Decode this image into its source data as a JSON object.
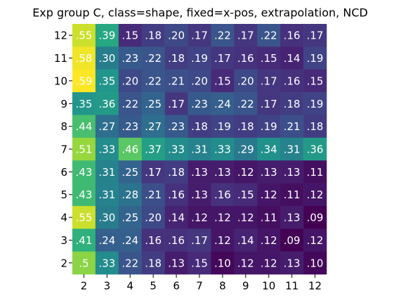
{
  "chart_data": {
    "type": "heatmap",
    "title": "Exp group C, class=shape, fixed=x-pos, extrapolation, NCD",
    "x": [
      2,
      3,
      4,
      5,
      6,
      7,
      8,
      9,
      10,
      11,
      12
    ],
    "y": [
      12,
      11,
      10,
      9,
      8,
      7,
      6,
      5,
      4,
      3,
      2
    ],
    "colormap": "viridis",
    "values": [
      [
        0.55,
        0.39,
        0.15,
        0.18,
        0.2,
        0.17,
        0.22,
        0.17,
        0.22,
        0.16,
        0.17
      ],
      [
        0.58,
        0.3,
        0.23,
        0.22,
        0.18,
        0.19,
        0.17,
        0.16,
        0.15,
        0.14,
        0.19
      ],
      [
        0.59,
        0.35,
        0.2,
        0.22,
        0.21,
        0.2,
        0.15,
        0.2,
        0.17,
        0.16,
        0.15
      ],
      [
        0.35,
        0.36,
        0.22,
        0.25,
        0.17,
        0.23,
        0.24,
        0.22,
        0.17,
        0.18,
        0.19
      ],
      [
        0.44,
        0.27,
        0.23,
        0.27,
        0.23,
        0.18,
        0.19,
        0.18,
        0.19,
        0.21,
        0.18
      ],
      [
        0.51,
        0.33,
        0.46,
        0.37,
        0.33,
        0.31,
        0.33,
        0.29,
        0.34,
        0.31,
        0.36
      ],
      [
        0.43,
        0.31,
        0.25,
        0.17,
        0.18,
        0.13,
        0.13,
        0.12,
        0.13,
        0.13,
        0.11
      ],
      [
        0.43,
        0.31,
        0.28,
        0.21,
        0.16,
        0.13,
        0.16,
        0.15,
        0.12,
        0.11,
        0.12
      ],
      [
        0.55,
        0.3,
        0.25,
        0.2,
        0.14,
        0.12,
        0.12,
        0.12,
        0.11,
        0.13,
        0.09
      ],
      [
        0.41,
        0.24,
        0.24,
        0.16,
        0.16,
        0.17,
        0.12,
        0.14,
        0.12,
        0.09,
        0.12
      ],
      [
        0.5,
        0.33,
        0.22,
        0.18,
        0.13,
        0.15,
        0.1,
        0.12,
        0.12,
        0.13,
        0.1
      ]
    ],
    "value_labels": [
      [
        ".55",
        ".39",
        ".15",
        ".18",
        ".20",
        ".17",
        ".22",
        ".17",
        ".22",
        ".16",
        ".17"
      ],
      [
        ".58",
        ".30",
        ".23",
        ".22",
        ".18",
        ".19",
        ".17",
        ".16",
        ".15",
        ".14",
        ".19"
      ],
      [
        ".59",
        ".35",
        ".20",
        ".22",
        ".21",
        ".20",
        ".15",
        ".20",
        ".17",
        ".16",
        ".15"
      ],
      [
        ".35",
        ".36",
        ".22",
        ".25",
        ".17",
        ".23",
        ".24",
        ".22",
        ".17",
        ".18",
        ".19"
      ],
      [
        ".44",
        ".27",
        ".23",
        ".27",
        ".23",
        ".18",
        ".19",
        ".18",
        ".19",
        ".21",
        ".18"
      ],
      [
        ".51",
        ".33",
        ".46",
        ".37",
        ".33",
        ".31",
        ".33",
        ".29",
        ".34",
        ".31",
        ".36"
      ],
      [
        ".43",
        ".31",
        ".25",
        ".17",
        ".18",
        ".13",
        ".13",
        ".12",
        ".13",
        ".13",
        ".11"
      ],
      [
        ".43",
        ".31",
        ".28",
        ".21",
        ".16",
        ".13",
        ".16",
        ".15",
        ".12",
        ".11",
        ".12"
      ],
      [
        ".55",
        ".30",
        ".25",
        ".20",
        ".14",
        ".12",
        ".12",
        ".12",
        ".11",
        ".13",
        ".09"
      ],
      [
        ".41",
        ".24",
        ".24",
        ".16",
        ".16",
        ".17",
        ".12",
        ".14",
        ".12",
        ".09",
        ".12"
      ],
      [
        ".5",
        ".33",
        ".22",
        ".18",
        ".13",
        ".15",
        ".10",
        ".12",
        ".12",
        ".13",
        ".10"
      ]
    ]
  }
}
